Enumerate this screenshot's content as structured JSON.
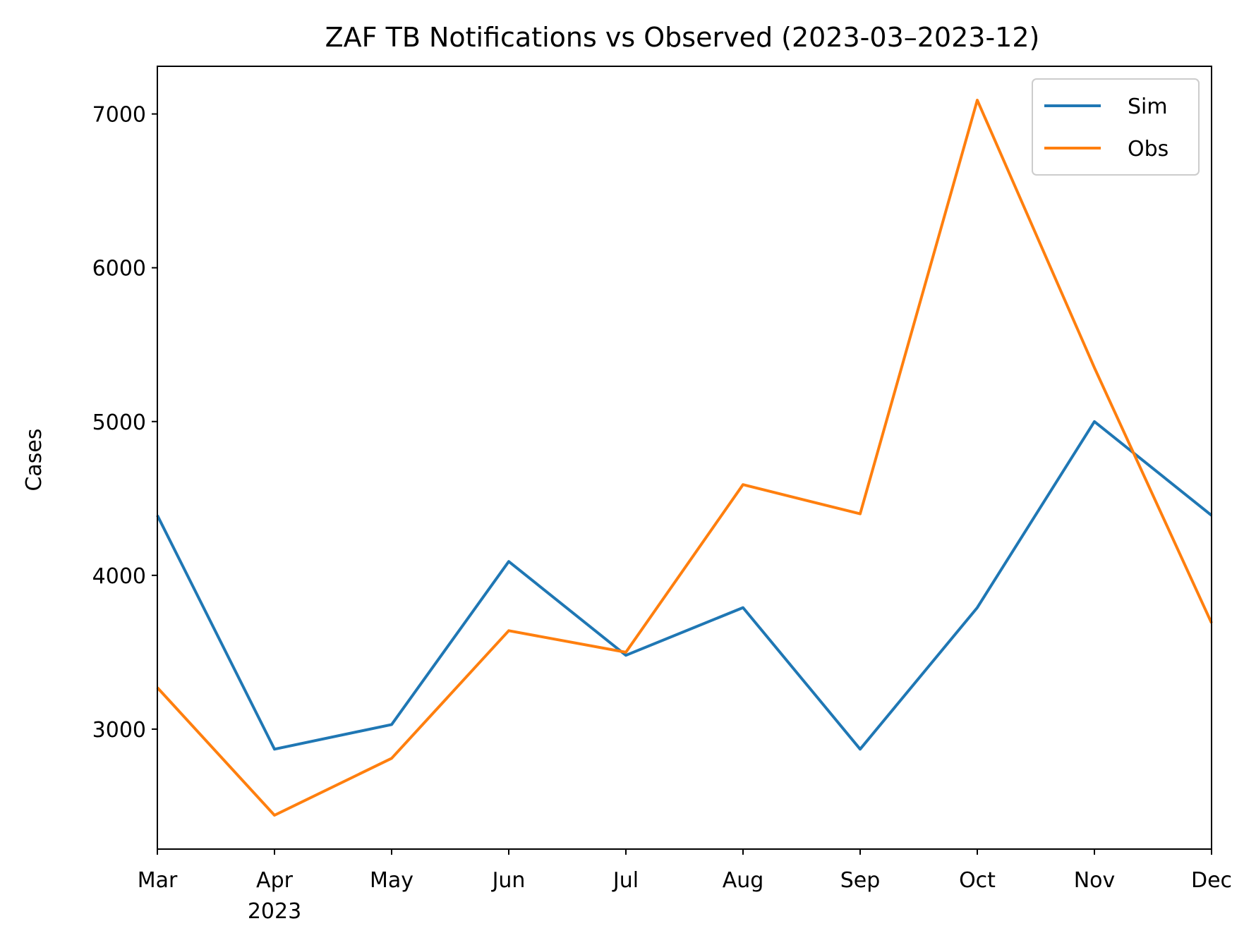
{
  "chart_data": {
    "type": "line",
    "title": "ZAF TB Notifications vs Observed  (2023-03–2023-12)",
    "xlabel": "",
    "ylabel": "Cases",
    "x": [
      "2023-03",
      "2023-04",
      "2023-05",
      "2023-06",
      "2023-07",
      "2023-08",
      "2023-09",
      "2023-10",
      "2023-11",
      "2023-12"
    ],
    "x_tick_labels": [
      "Mar",
      "Apr",
      "May",
      "Jun",
      "Jul",
      "Aug",
      "Sep",
      "Oct",
      "Nov",
      "Dec"
    ],
    "x_year_label": "2023",
    "y_ticks": [
      3000,
      4000,
      5000,
      6000,
      7000
    ],
    "ylim": [
      2220,
      7310
    ],
    "grid": false,
    "legend_position": "top-right",
    "series": [
      {
        "name": "Sim",
        "color": "#1f77b4",
        "values": [
          4390,
          2870,
          3030,
          4090,
          3480,
          3790,
          2870,
          3790,
          5000,
          4390
        ]
      },
      {
        "name": "Obs",
        "color": "#ff7f0e",
        "values": [
          3270,
          2440,
          2810,
          3640,
          3500,
          4590,
          4400,
          7090,
          5350,
          3690
        ]
      }
    ]
  }
}
